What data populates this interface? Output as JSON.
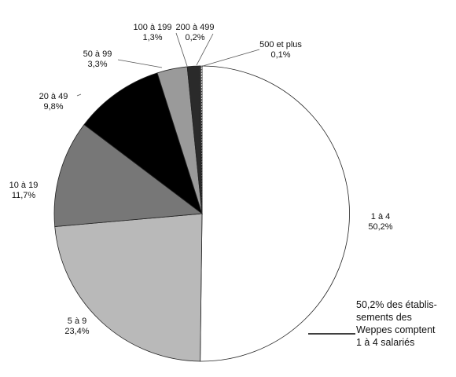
{
  "chart_data": {
    "type": "pie",
    "categories": [
      "1 à 4",
      "5 à 9",
      "10 à 19",
      "20 à 49",
      "50 à 99",
      "100 à 199",
      "200 à 499",
      "500 et plus"
    ],
    "values": [
      50.2,
      23.4,
      11.7,
      9.8,
      3.3,
      1.3,
      0.2,
      0.1
    ],
    "value_labels": [
      "50,2%",
      "23,4%",
      "11,7%",
      "9,8%",
      "3,3%",
      "1,3%",
      "0,2%",
      "0,1%"
    ],
    "colors": [
      "#ffffff",
      "#b9b9b9",
      "#777777",
      "#000000",
      "#9a9a9a",
      "#2a2a2a",
      "#4a4a4a",
      "#ffffff"
    ],
    "start_angle_deg": 0,
    "direction": "clockwise",
    "title": "",
    "annotation_lines": [
      "50,2% des établis-",
      "sements des",
      "Weppes comptent",
      "1 à 4 salariés"
    ]
  }
}
